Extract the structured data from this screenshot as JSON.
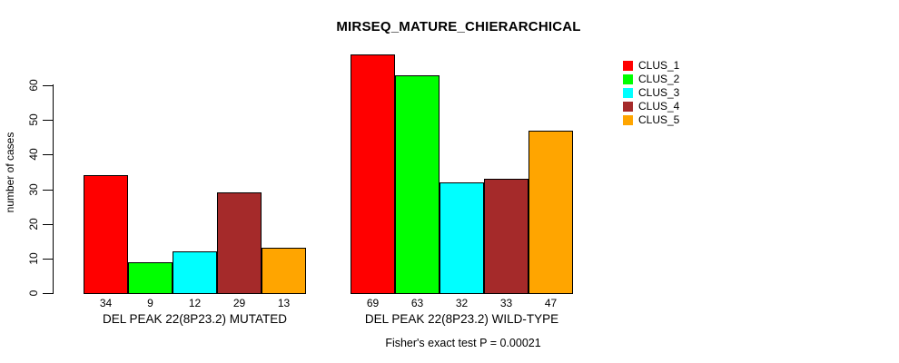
{
  "chart_data": {
    "type": "bar",
    "title": "MIRSEQ_MATURE_CHIERARCHICAL",
    "ylabel": "number of cases",
    "yticks": [
      0,
      10,
      20,
      30,
      40,
      50,
      60
    ],
    "ylim": [
      0,
      69
    ],
    "grid": false,
    "legend_position": "right",
    "categories": [
      "DEL PEAK 22(8P23.2) MUTATED",
      "DEL PEAK 22(8P23.2) WILD-TYPE"
    ],
    "series": [
      {
        "name": "CLUS_1",
        "color": "#FF0000",
        "values": [
          34,
          69
        ]
      },
      {
        "name": "CLUS_2",
        "color": "#00FF00",
        "values": [
          9,
          63
        ]
      },
      {
        "name": "CLUS_3",
        "color": "#00FFFF",
        "values": [
          12,
          32
        ]
      },
      {
        "name": "CLUS_4",
        "color": "#A52A2A",
        "values": [
          29,
          33
        ]
      },
      {
        "name": "CLUS_5",
        "color": "#FFA500",
        "values": [
          13,
          47
        ]
      }
    ],
    "bar_value_labels": [
      [
        34,
        9,
        12,
        29,
        13
      ],
      [
        69,
        63,
        32,
        33,
        47
      ]
    ],
    "annotation": "Fisher's exact test P = 0.00021"
  }
}
